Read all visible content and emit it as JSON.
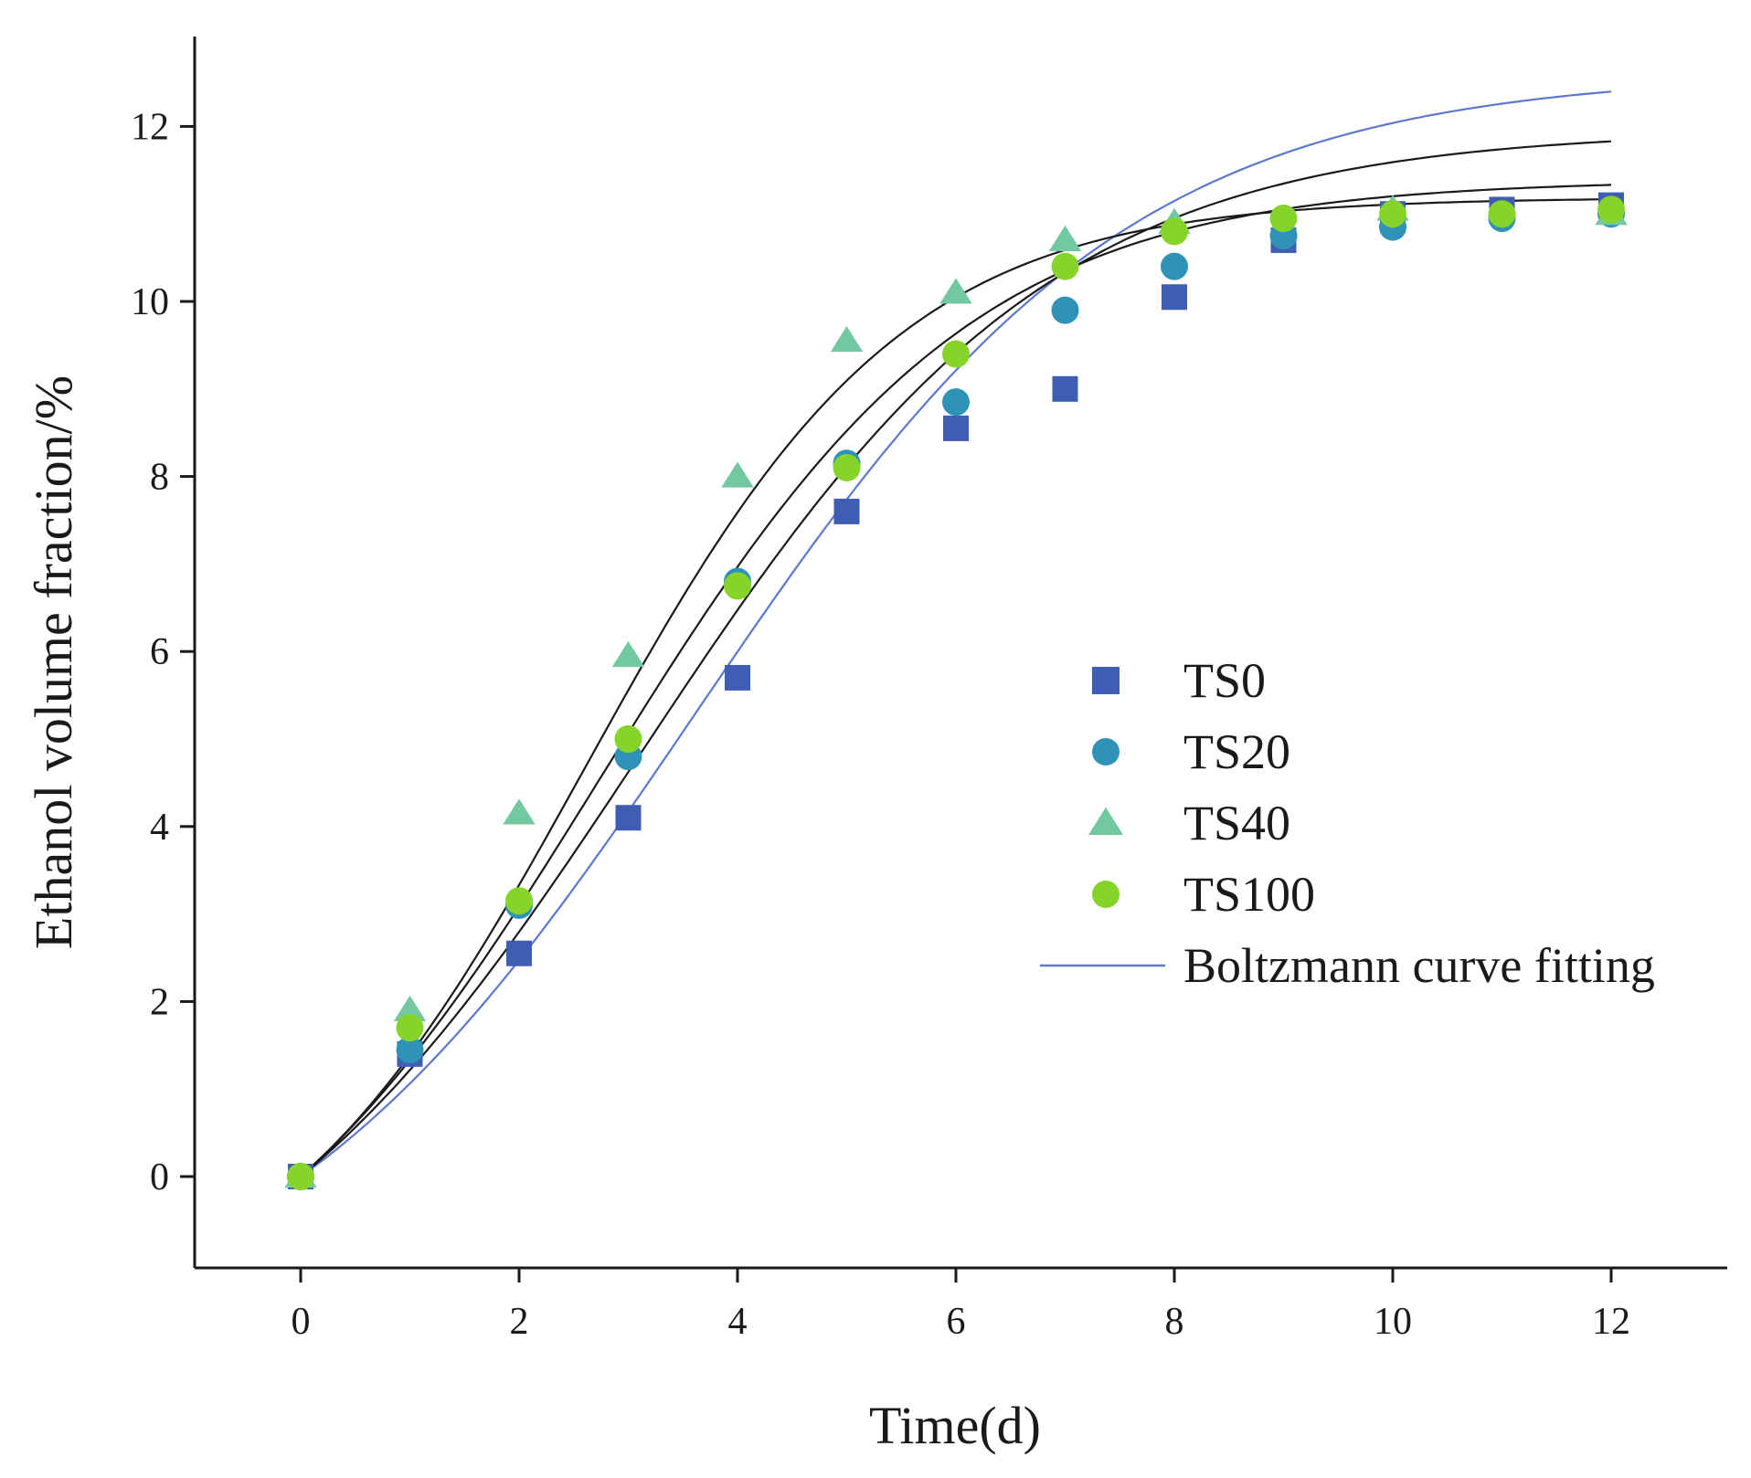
{
  "chart_data": {
    "type": "scatter",
    "title": "",
    "xlabel": "Time(d)",
    "ylabel": "Ethanol volume fraction/%",
    "xlim": [
      -1,
      13.5
    ],
    "ylim": [
      -1,
      13
    ],
    "xticks": [
      0,
      2,
      4,
      6,
      8,
      10,
      12
    ],
    "yticks": [
      0,
      2,
      4,
      6,
      8,
      10,
      12
    ],
    "x_tick_labels": [
      "0",
      "2",
      "4",
      "6",
      "8",
      "10",
      "12"
    ],
    "y_tick_labels": [
      "0",
      "2",
      "4",
      "6",
      "8",
      "10",
      "12"
    ],
    "grid": false,
    "legend_position": "center-right",
    "series": [
      {
        "name": "TS0",
        "marker": "square",
        "color": "#3f5db3",
        "x": [
          0,
          1,
          2,
          3,
          4,
          5,
          6,
          7,
          8,
          9,
          10,
          11,
          12
        ],
        "values": [
          0,
          1.4,
          2.55,
          4.1,
          5.7,
          7.6,
          8.55,
          9.0,
          10.05,
          10.7,
          11.0,
          11.05,
          11.1
        ],
        "fit": {
          "A1": -3.4,
          "A2": 11.3,
          "x0": 3.6,
          "dx": 2.0,
          "color": "#5b78cc"
        }
      },
      {
        "name": "TS20",
        "marker": "circle",
        "color": "#2f93b8",
        "x": [
          0,
          1,
          2,
          3,
          4,
          5,
          6,
          7,
          8,
          9,
          10,
          11,
          12
        ],
        "values": [
          0,
          1.45,
          3.1,
          4.8,
          6.8,
          8.15,
          8.85,
          9.9,
          10.4,
          10.75,
          10.85,
          10.95,
          11.0
        ],
        "fit": {
          "A1": -3.15,
          "A2": 11.15,
          "x0": 3.1,
          "dx": 1.9,
          "color": "#1a1a1a"
        }
      },
      {
        "name": "TS40",
        "marker": "triangle",
        "color": "#72c8a0",
        "x": [
          0,
          1,
          2,
          3,
          4,
          5,
          6,
          7,
          8,
          10,
          12
        ],
        "values": [
          0,
          1.9,
          4.15,
          5.95,
          8.0,
          9.55,
          10.1,
          10.7,
          10.9,
          11.05,
          11.0
        ],
        "fit": {
          "A1": -2.0,
          "A2": 11.05,
          "x0": 2.6,
          "dx": 1.45,
          "color": "#1a1a1a"
        }
      },
      {
        "name": "TS100",
        "marker": "circle",
        "color": "#86d42a",
        "x": [
          0,
          1,
          2,
          3,
          4,
          5,
          6,
          7,
          8,
          9,
          10,
          11,
          12
        ],
        "values": [
          0,
          1.7,
          3.15,
          5.0,
          6.75,
          8.1,
          9.4,
          10.4,
          10.8,
          10.95,
          11.0,
          11.0,
          11.05
        ],
        "fit": {
          "A1": -2.6,
          "A2": 11.05,
          "x0": 2.75,
          "dx": 1.7,
          "color": "#1a1a1a"
        }
      }
    ],
    "legend": [
      {
        "label": "TS0",
        "marker": "square",
        "color": "#3f5db3"
      },
      {
        "label": "TS20",
        "marker": "circle",
        "color": "#2f93b8"
      },
      {
        "label": "TS40",
        "marker": "triangle",
        "color": "#72c8a0"
      },
      {
        "label": "TS100",
        "marker": "circle",
        "color": "#86d42a"
      },
      {
        "label": "Boltzmann curve fitting",
        "marker": "line",
        "color": "#5b78cc"
      }
    ]
  }
}
